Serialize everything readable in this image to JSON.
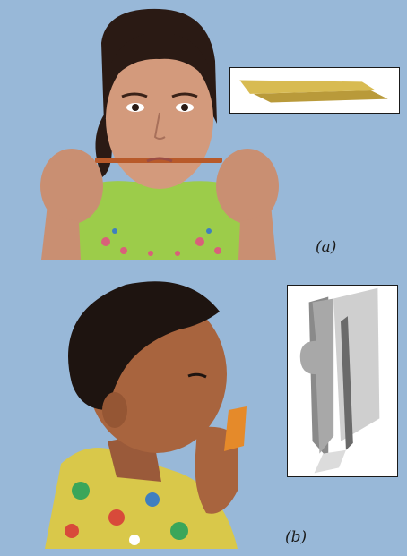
{
  "figure": {
    "background_color": "#98b8d8",
    "panel_a": {
      "caption": "(a)",
      "photo": "girl-blowing-paper-strip",
      "inset": "two-stacked-paper-strips"
    },
    "panel_b": {
      "caption": "(b)",
      "photo": "boy-blowing-folded-paper",
      "inset": "folded-paper-with-notch"
    }
  }
}
